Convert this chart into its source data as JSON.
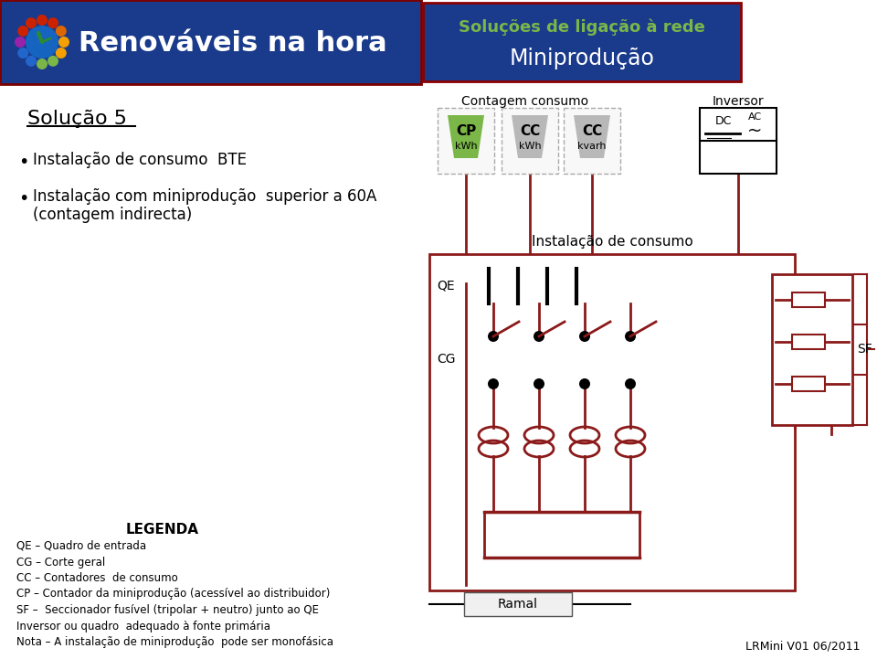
{
  "header_bg_color": "#1a3a8c",
  "header_text_color": "#ffffff",
  "header_green_color": "#7ab648",
  "logo_text": "Renováveis na hora",
  "title_line1": "Soluções de ligação à rede",
  "title_line2": "Miniprodução",
  "solution_title": "Solução 5",
  "bullet1": "Instalação de consumo  BTE",
  "bullet2a": "Instalação com miniprodução  superior a 60A",
  "bullet2b": "(contagem indirecta)",
  "section_contagem": "Contagem consumo",
  "section_inversor": "Inversor",
  "label_CP": "CP",
  "label_CP_unit": "kWh",
  "label_CC1": "CC",
  "label_CC1_unit": "kWh",
  "label_CC2": "CC",
  "label_CC2_unit": "kvarh",
  "label_instalacao": "Instalação de consumo",
  "label_QE": "QE",
  "label_CG": "CG",
  "label_SF": "SF",
  "label_ramal": "Ramal",
  "legend_title": "LEGENDA",
  "legend_QE": "QE – Quadro de entrada",
  "legend_CG": "CG – Corte geral",
  "legend_CC": "CC – Contadores  de consumo",
  "legend_CP": "CP – Contador da miniprodução (acessível ao distribuidor)",
  "legend_SF": "SF –  Seccionador fusível (tripolar + neutro) junto ao QE",
  "legend_inv": "Inversor ou quadro  adequado à fonte primária",
  "legend_nota": "Nota – A instalação de miniprodução  pode ser monofásica",
  "footer_text": "LRMini V01 06/2011",
  "dark_red": "#8b1a1a",
  "green_meter": "#7ab648",
  "gray_meter": "#b8b8b8",
  "bg_white": "#ffffff",
  "line_color": "#8b1a1a",
  "header_border": "#7b0000",
  "petal_colors": [
    "#cc2200",
    "#cc2200",
    "#dd6600",
    "#f5a000",
    "#f5a000",
    "#7ab648",
    "#7ab648",
    "#2266cc",
    "#2266cc",
    "#9922aa",
    "#cc2200",
    "#cc2200"
  ]
}
